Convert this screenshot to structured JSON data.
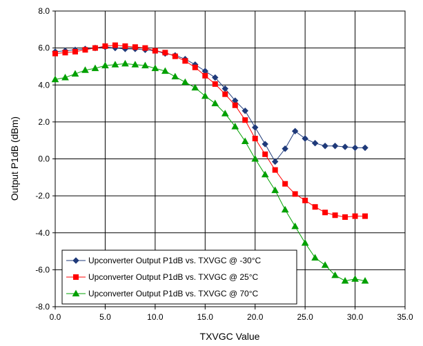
{
  "chart_data": {
    "type": "line",
    "title": "",
    "xlabel": "TXVGC Value",
    "ylabel": "Output P1dB (dBm)",
    "xlim": [
      0,
      35
    ],
    "ylim": [
      -8,
      8
    ],
    "xticks": [
      0,
      5,
      10,
      15,
      20,
      25,
      30,
      35
    ],
    "xtick_labels": [
      "0.0",
      "5.0",
      "10.0",
      "15.0",
      "20.0",
      "25.0",
      "30.0",
      "35.0"
    ],
    "yticks": [
      8,
      6,
      4,
      2,
      0,
      -2,
      -4,
      -6,
      -8
    ],
    "ytick_labels": [
      "8.0",
      "6.0",
      "4.0",
      "2.0",
      "0.0",
      "-2.0",
      "-4.0",
      "-6.0",
      "-8.0"
    ],
    "grid": true,
    "legend_position": "bottom-left",
    "x": [
      0,
      1,
      2,
      3,
      4,
      5,
      6,
      7,
      8,
      9,
      10,
      11,
      12,
      13,
      14,
      15,
      16,
      17,
      18,
      19,
      20,
      21,
      22,
      23,
      24,
      25,
      26,
      27,
      28,
      29,
      30,
      31
    ],
    "series": [
      {
        "name": "Upconverter Output P1dB vs. TXVGC @ -30°C",
        "color": "#1f3a7a",
        "marker": "diamond",
        "values": [
          5.8,
          5.85,
          5.9,
          5.95,
          6.0,
          6.05,
          6.0,
          5.95,
          5.95,
          5.9,
          5.85,
          5.7,
          5.6,
          5.4,
          5.1,
          4.75,
          4.4,
          3.8,
          3.15,
          2.6,
          1.7,
          0.8,
          -0.15,
          0.55,
          1.5,
          1.1,
          0.85,
          0.7,
          0.7,
          0.65,
          0.6,
          0.6
        ]
      },
      {
        "name": "Upconverter Output P1dB vs. TXVGC @ 25°C",
        "color": "#ff0000",
        "marker": "square",
        "values": [
          5.7,
          5.75,
          5.8,
          5.9,
          6.0,
          6.1,
          6.15,
          6.1,
          6.05,
          6.0,
          5.85,
          5.75,
          5.55,
          5.3,
          4.95,
          4.5,
          4.05,
          3.5,
          2.9,
          2.1,
          1.1,
          0.25,
          -0.6,
          -1.35,
          -1.9,
          -2.25,
          -2.6,
          -2.9,
          -3.05,
          -3.15,
          -3.1,
          -3.1
        ]
      },
      {
        "name": "Upconverter Output P1dB vs. TXVGC @ 70°C",
        "color": "#00a000",
        "marker": "triangle",
        "values": [
          4.3,
          4.4,
          4.6,
          4.8,
          4.9,
          5.05,
          5.1,
          5.15,
          5.1,
          5.05,
          4.9,
          4.75,
          4.45,
          4.15,
          3.85,
          3.4,
          3.0,
          2.45,
          1.75,
          0.95,
          0.0,
          -0.85,
          -1.7,
          -2.75,
          -3.65,
          -4.55,
          -5.35,
          -5.75,
          -6.3,
          -6.6,
          -6.5,
          -6.6
        ]
      }
    ]
  }
}
